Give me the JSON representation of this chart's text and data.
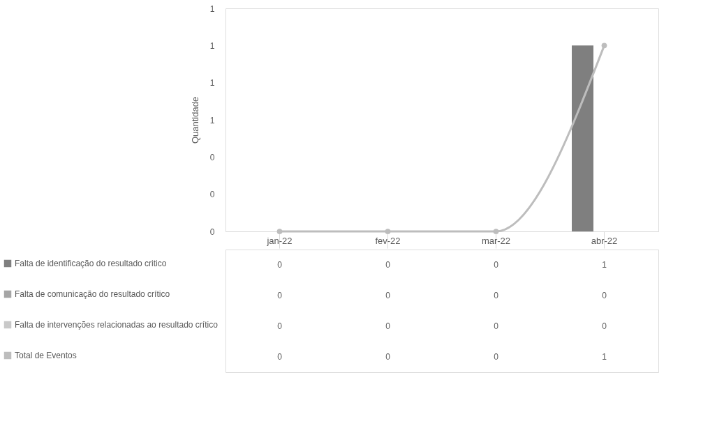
{
  "chart_data": {
    "type": "bar",
    "ylabel": "Quantidade",
    "categories": [
      "jan-22",
      "fev-22",
      "mar-22",
      "abr-22"
    ],
    "series": [
      {
        "name": "Falta de identificação do resultado critico",
        "color": "#7f7f7f",
        "values": [
          0,
          0,
          0,
          1
        ]
      },
      {
        "name": "Falta de comunicação do resultado crítico",
        "color": "#a5a5a5",
        "values": [
          0,
          0,
          0,
          0
        ]
      },
      {
        "name": "Falta de intervenções relacionadas ao resultado crítico",
        "color": "#c9c9c9",
        "values": [
          0,
          0,
          0,
          0
        ]
      },
      {
        "name": "Total de Eventos",
        "type": "line",
        "color": "#bdbdbd",
        "marker": "circle",
        "values": [
          0,
          0,
          0,
          1
        ]
      }
    ],
    "ylim": [
      0,
      1.2
    ],
    "yticks": [
      {
        "value": 0,
        "label": "0"
      },
      {
        "value": 0.2,
        "label": "0"
      },
      {
        "value": 0.4,
        "label": "0"
      },
      {
        "value": 0.6,
        "label": "1"
      },
      {
        "value": 0.8,
        "label": "1"
      },
      {
        "value": 1.0,
        "label": "1"
      },
      {
        "value": 1.2,
        "label": "1"
      }
    ],
    "data_labels": true,
    "grid": false,
    "legend": "bottom"
  }
}
